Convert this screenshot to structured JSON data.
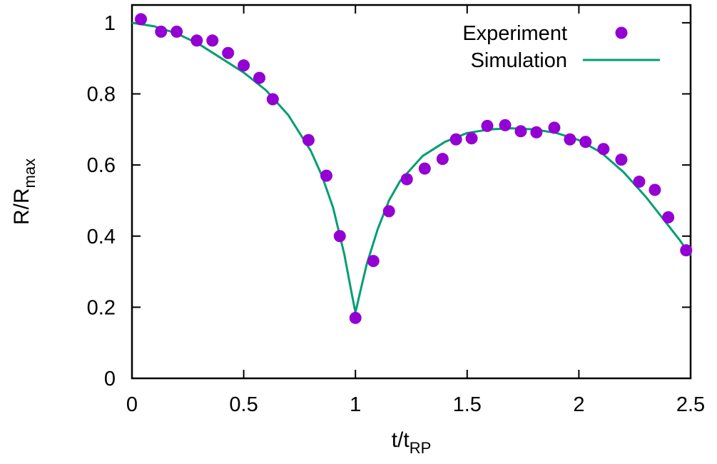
{
  "chart_data": {
    "type": "scatter",
    "title": "",
    "xlabel": {
      "main": "t/t",
      "sub": "RP"
    },
    "ylabel": {
      "main": "R/R",
      "sub": "max"
    },
    "xlim": [
      0,
      2.5
    ],
    "ylim": [
      0,
      1.05
    ],
    "x_ticks": [
      0,
      0.5,
      1,
      1.5,
      2,
      2.5
    ],
    "x_tick_labels": [
      "0",
      "0.5",
      "1",
      "1.5",
      "2",
      "2.5"
    ],
    "y_ticks": [
      0,
      0.2,
      0.4,
      0.6,
      0.8,
      1
    ],
    "y_tick_labels": [
      "0",
      "0.2",
      "0.4",
      "0.6",
      "0.8",
      "1"
    ],
    "grid": false,
    "legend_position": "top-right",
    "series": [
      {
        "name": "Experiment",
        "style": "points",
        "color": "#9400D3",
        "x": [
          0.04,
          0.13,
          0.2,
          0.29,
          0.36,
          0.43,
          0.5,
          0.57,
          0.63,
          0.79,
          0.87,
          0.93,
          1.0,
          1.08,
          1.15,
          1.23,
          1.31,
          1.39,
          1.45,
          1.52,
          1.59,
          1.67,
          1.74,
          1.81,
          1.89,
          1.96,
          2.03,
          2.11,
          2.19,
          2.27,
          2.34,
          2.4,
          2.48
        ],
        "y": [
          1.01,
          0.975,
          0.975,
          0.95,
          0.95,
          0.915,
          0.88,
          0.845,
          0.785,
          0.67,
          0.57,
          0.4,
          0.17,
          0.33,
          0.47,
          0.56,
          0.59,
          0.617,
          0.672,
          0.675,
          0.71,
          0.712,
          0.695,
          0.692,
          0.705,
          0.672,
          0.665,
          0.645,
          0.615,
          0.553,
          0.53,
          0.453,
          0.36
        ]
      },
      {
        "name": "Simulation",
        "style": "line",
        "color": "#009E73",
        "x": [
          0,
          0.1,
          0.2,
          0.3,
          0.4,
          0.5,
          0.6,
          0.7,
          0.8,
          0.85,
          0.9,
          0.95,
          0.98,
          1.0,
          1.02,
          1.05,
          1.1,
          1.15,
          1.2,
          1.3,
          1.4,
          1.5,
          1.6,
          1.7,
          1.8,
          1.9,
          2.0,
          2.1,
          2.2,
          2.3,
          2.4,
          2.45,
          2.5
        ],
        "y": [
          1.0,
          0.99,
          0.97,
          0.94,
          0.9,
          0.86,
          0.81,
          0.74,
          0.64,
          0.57,
          0.48,
          0.35,
          0.25,
          0.185,
          0.24,
          0.32,
          0.42,
          0.5,
          0.555,
          0.625,
          0.665,
          0.69,
          0.7,
          0.703,
          0.7,
          0.69,
          0.67,
          0.635,
          0.58,
          0.51,
          0.43,
          0.39,
          0.345
        ]
      }
    ]
  }
}
